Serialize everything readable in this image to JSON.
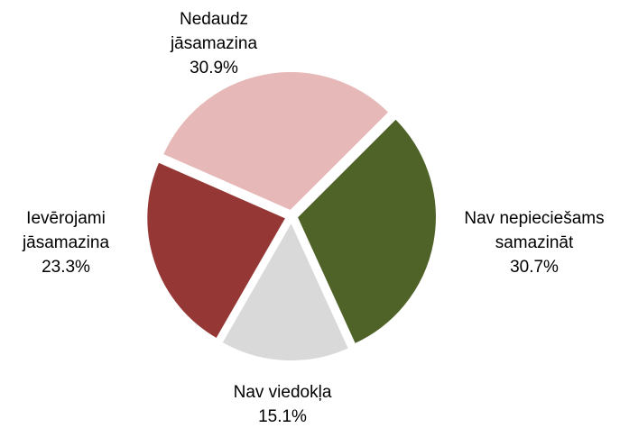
{
  "chart_data": {
    "type": "pie",
    "categories": [
      "Nav nepieciešams samazināt",
      "Nav viedokļa",
      "Ievērojami jāsamazina",
      "Nedaudz jāsamazina"
    ],
    "values": [
      30.7,
      15.1,
      23.3,
      30.9
    ],
    "value_labels": [
      "30.7%",
      "15.1%",
      "23.3%",
      "30.9%"
    ],
    "colors": [
      "#4f6228",
      "#d9d9d9",
      "#953735",
      "#e6b9b8"
    ]
  }
}
